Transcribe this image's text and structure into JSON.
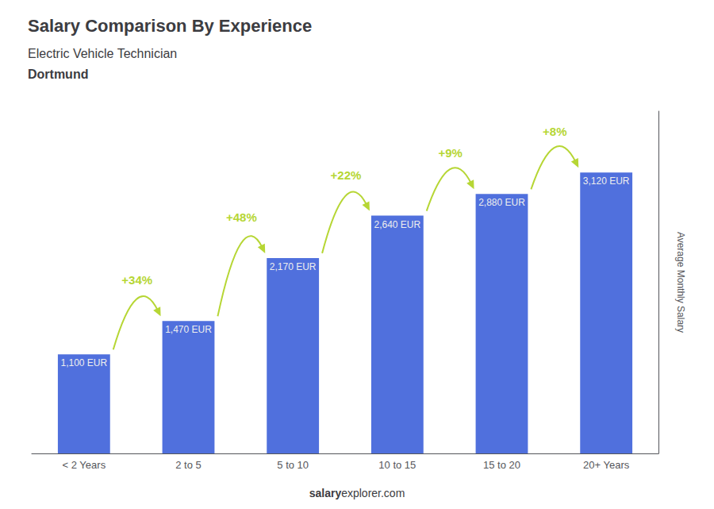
{
  "chart_data": {
    "type": "bar",
    "title": "Salary Comparison By Experience",
    "subtitle": [
      "Electric Vehicle Technician",
      "Dortmund"
    ],
    "categories": [
      "< 2 Years",
      "2 to 5",
      "5 to 10",
      "10 to 15",
      "15 to 20",
      "20+ Years"
    ],
    "values": [
      1100,
      1470,
      2170,
      2640,
      2880,
      3120
    ],
    "value_labels": [
      "1,100 EUR",
      "1,470 EUR",
      "2,170 EUR",
      "2,640 EUR",
      "2,880 EUR",
      "3,120 EUR"
    ],
    "data_labels": true,
    "annotations": [
      "+34%",
      "+48%",
      "+22%",
      "+9%",
      "+8%"
    ],
    "ylabel": "Average Monthly Salary",
    "ylim": [
      0,
      3800
    ],
    "tick_labels": "x",
    "grid": false,
    "source": [
      "salary",
      "explorer.com"
    ]
  }
}
